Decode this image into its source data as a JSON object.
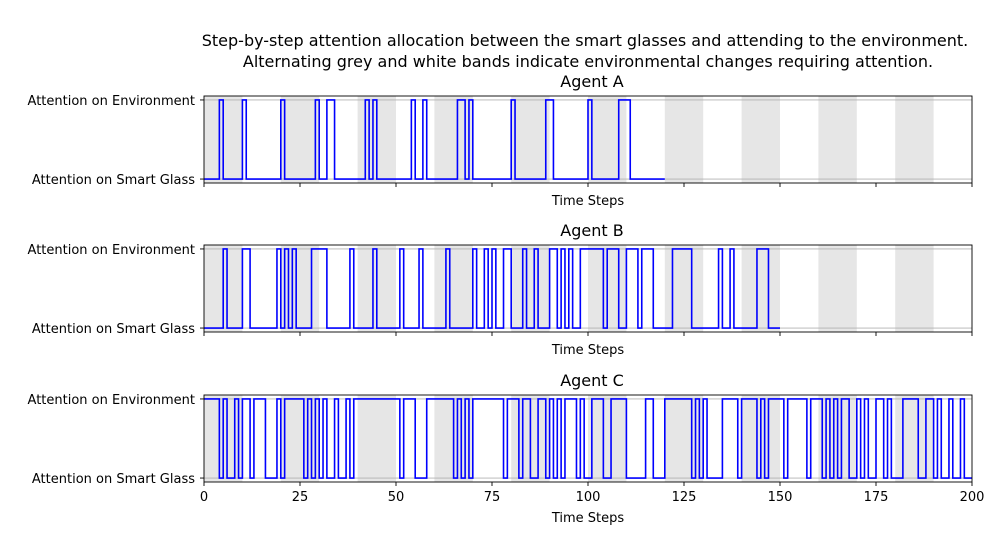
{
  "figure": {
    "title_line1": "Step-by-step attention allocation between the smart glasses and attending to the environment.",
    "title_line2": "Alternating grey and white bands indicate environmental changes requiring attention."
  },
  "chart_data": [
    {
      "type": "line",
      "step": "post",
      "title": "Agent A",
      "xlabel": "Time Steps",
      "ylabel": "",
      "xlim": [
        0,
        200
      ],
      "ylim": [
        -0.05,
        1.05
      ],
      "yticks": [
        0,
        1
      ],
      "yticklabels": [
        "Attention on Smart Glass",
        "Attention on Environment"
      ],
      "xticks": [
        0,
        25,
        50,
        75,
        100,
        125,
        150,
        175,
        200
      ],
      "xticklabels_shown": false,
      "grid_y": true,
      "bands": {
        "period": 20,
        "grey_width": 10,
        "start": 0,
        "end": 190,
        "color": "#e6e6e6"
      },
      "line_color": "#0000ff",
      "end_x": 120,
      "transitions": [
        [
          0,
          0
        ],
        [
          4,
          1
        ],
        [
          5,
          0
        ],
        [
          10,
          1
        ],
        [
          11,
          0
        ],
        [
          20,
          1
        ],
        [
          21,
          0
        ],
        [
          29,
          1
        ],
        [
          30,
          0
        ],
        [
          32,
          1
        ],
        [
          34,
          0
        ],
        [
          42,
          1
        ],
        [
          43,
          0
        ],
        [
          44,
          1
        ],
        [
          45,
          0
        ],
        [
          54,
          1
        ],
        [
          55,
          0
        ],
        [
          57,
          1
        ],
        [
          58,
          0
        ],
        [
          66,
          1
        ],
        [
          68,
          0
        ],
        [
          69,
          1
        ],
        [
          70,
          0
        ],
        [
          80,
          1
        ],
        [
          81,
          0
        ],
        [
          89,
          1
        ],
        [
          91,
          0
        ],
        [
          100,
          1
        ],
        [
          101,
          0
        ],
        [
          108,
          1
        ],
        [
          111,
          0
        ]
      ]
    },
    {
      "type": "line",
      "step": "post",
      "title": "Agent B",
      "xlabel": "Time Steps",
      "ylabel": "",
      "xlim": [
        0,
        200
      ],
      "ylim": [
        -0.05,
        1.05
      ],
      "yticks": [
        0,
        1
      ],
      "yticklabels": [
        "Attention on Smart Glass",
        "Attention on Environment"
      ],
      "xticks": [
        0,
        25,
        50,
        75,
        100,
        125,
        150,
        175,
        200
      ],
      "xticklabels_shown": false,
      "grid_y": true,
      "bands": {
        "period": 20,
        "grey_width": 10,
        "start": 0,
        "end": 190,
        "color": "#e6e6e6"
      },
      "line_color": "#0000ff",
      "end_x": 150,
      "transitions": [
        [
          0,
          0
        ],
        [
          5,
          1
        ],
        [
          6,
          0
        ],
        [
          10,
          1
        ],
        [
          12,
          0
        ],
        [
          19,
          1
        ],
        [
          20,
          0
        ],
        [
          21,
          1
        ],
        [
          22,
          0
        ],
        [
          23,
          1
        ],
        [
          24,
          0
        ],
        [
          28,
          1
        ],
        [
          32,
          0
        ],
        [
          38,
          1
        ],
        [
          39,
          0
        ],
        [
          44,
          1
        ],
        [
          45,
          0
        ],
        [
          51,
          1
        ],
        [
          52,
          0
        ],
        [
          56,
          1
        ],
        [
          57,
          0
        ],
        [
          63,
          1
        ],
        [
          64,
          0
        ],
        [
          70,
          1
        ],
        [
          71,
          0
        ],
        [
          73,
          1
        ],
        [
          74,
          0
        ],
        [
          75,
          1
        ],
        [
          76,
          0
        ],
        [
          78,
          1
        ],
        [
          80,
          0
        ],
        [
          83,
          1
        ],
        [
          84,
          0
        ],
        [
          86,
          1
        ],
        [
          87,
          0
        ],
        [
          90,
          1
        ],
        [
          92,
          0
        ],
        [
          93,
          1
        ],
        [
          94,
          0
        ],
        [
          95,
          1
        ],
        [
          96,
          0
        ],
        [
          98,
          1
        ],
        [
          104,
          0
        ],
        [
          105,
          1
        ],
        [
          108,
          0
        ],
        [
          110,
          1
        ],
        [
          113,
          0
        ],
        [
          114,
          1
        ],
        [
          117,
          0
        ],
        [
          122,
          1
        ],
        [
          127,
          0
        ],
        [
          134,
          1
        ],
        [
          135,
          0
        ],
        [
          137,
          1
        ],
        [
          138,
          0
        ],
        [
          144,
          1
        ],
        [
          147,
          0
        ]
      ]
    },
    {
      "type": "line",
      "step": "post",
      "title": "Agent C",
      "xlabel": "Time Steps",
      "ylabel": "",
      "xlim": [
        0,
        200
      ],
      "ylim": [
        -0.05,
        1.05
      ],
      "yticks": [
        0,
        1
      ],
      "yticklabels": [
        "Attention on Smart Glass",
        "Attention on Environment"
      ],
      "xticks": [
        0,
        25,
        50,
        75,
        100,
        125,
        150,
        175,
        200
      ],
      "xticklabels": [
        "0",
        "25",
        "50",
        "75",
        "100",
        "125",
        "150",
        "175",
        "200"
      ],
      "xticklabels_shown": true,
      "grid_y": true,
      "bands": {
        "period": 20,
        "grey_width": 10,
        "start": 0,
        "end": 190,
        "color": "#e6e6e6"
      },
      "line_color": "#0000ff",
      "end_x": 200,
      "transitions": [
        [
          0,
          1
        ],
        [
          4,
          0
        ],
        [
          5,
          1
        ],
        [
          6,
          0
        ],
        [
          8,
          1
        ],
        [
          9,
          0
        ],
        [
          10,
          1
        ],
        [
          12,
          0
        ],
        [
          13,
          1
        ],
        [
          16,
          0
        ],
        [
          19,
          1
        ],
        [
          20,
          0
        ],
        [
          21,
          1
        ],
        [
          26,
          0
        ],
        [
          27,
          1
        ],
        [
          28,
          0
        ],
        [
          29,
          1
        ],
        [
          30,
          0
        ],
        [
          31,
          1
        ],
        [
          32,
          0
        ],
        [
          34,
          1
        ],
        [
          35,
          0
        ],
        [
          37,
          1
        ],
        [
          38,
          0
        ],
        [
          39,
          1
        ],
        [
          51,
          0
        ],
        [
          52,
          1
        ],
        [
          55,
          0
        ],
        [
          58,
          1
        ],
        [
          65,
          0
        ],
        [
          66,
          1
        ],
        [
          67,
          0
        ],
        [
          68,
          1
        ],
        [
          69,
          0
        ],
        [
          70,
          1
        ],
        [
          78,
          0
        ],
        [
          79,
          1
        ],
        [
          82,
          0
        ],
        [
          83,
          1
        ],
        [
          85,
          0
        ],
        [
          87,
          1
        ],
        [
          89,
          0
        ],
        [
          90,
          1
        ],
        [
          91,
          0
        ],
        [
          92,
          1
        ],
        [
          93,
          0
        ],
        [
          94,
          1
        ],
        [
          97,
          0
        ],
        [
          98,
          1
        ],
        [
          99,
          0
        ],
        [
          101,
          1
        ],
        [
          104,
          0
        ],
        [
          106,
          1
        ],
        [
          110,
          0
        ],
        [
          115,
          1
        ],
        [
          117,
          0
        ],
        [
          120,
          1
        ],
        [
          127,
          0
        ],
        [
          128,
          1
        ],
        [
          129,
          0
        ],
        [
          130,
          1
        ],
        [
          131,
          0
        ],
        [
          135,
          1
        ],
        [
          139,
          0
        ],
        [
          140,
          1
        ],
        [
          144,
          0
        ],
        [
          145,
          1
        ],
        [
          146,
          0
        ],
        [
          147,
          1
        ],
        [
          151,
          0
        ],
        [
          152,
          1
        ],
        [
          157,
          0
        ],
        [
          158,
          1
        ],
        [
          161,
          0
        ],
        [
          162,
          1
        ],
        [
          163,
          0
        ],
        [
          164,
          1
        ],
        [
          165,
          0
        ],
        [
          166,
          1
        ],
        [
          168,
          0
        ],
        [
          170,
          1
        ],
        [
          171,
          0
        ],
        [
          172,
          1
        ],
        [
          173,
          0
        ],
        [
          175,
          1
        ],
        [
          177,
          0
        ],
        [
          178,
          1
        ],
        [
          179,
          0
        ],
        [
          182,
          1
        ],
        [
          186,
          0
        ],
        [
          188,
          1
        ],
        [
          190,
          0
        ],
        [
          191,
          1
        ],
        [
          192,
          0
        ],
        [
          194,
          1
        ],
        [
          195,
          0
        ],
        [
          197,
          1
        ],
        [
          198,
          0
        ]
      ]
    }
  ]
}
